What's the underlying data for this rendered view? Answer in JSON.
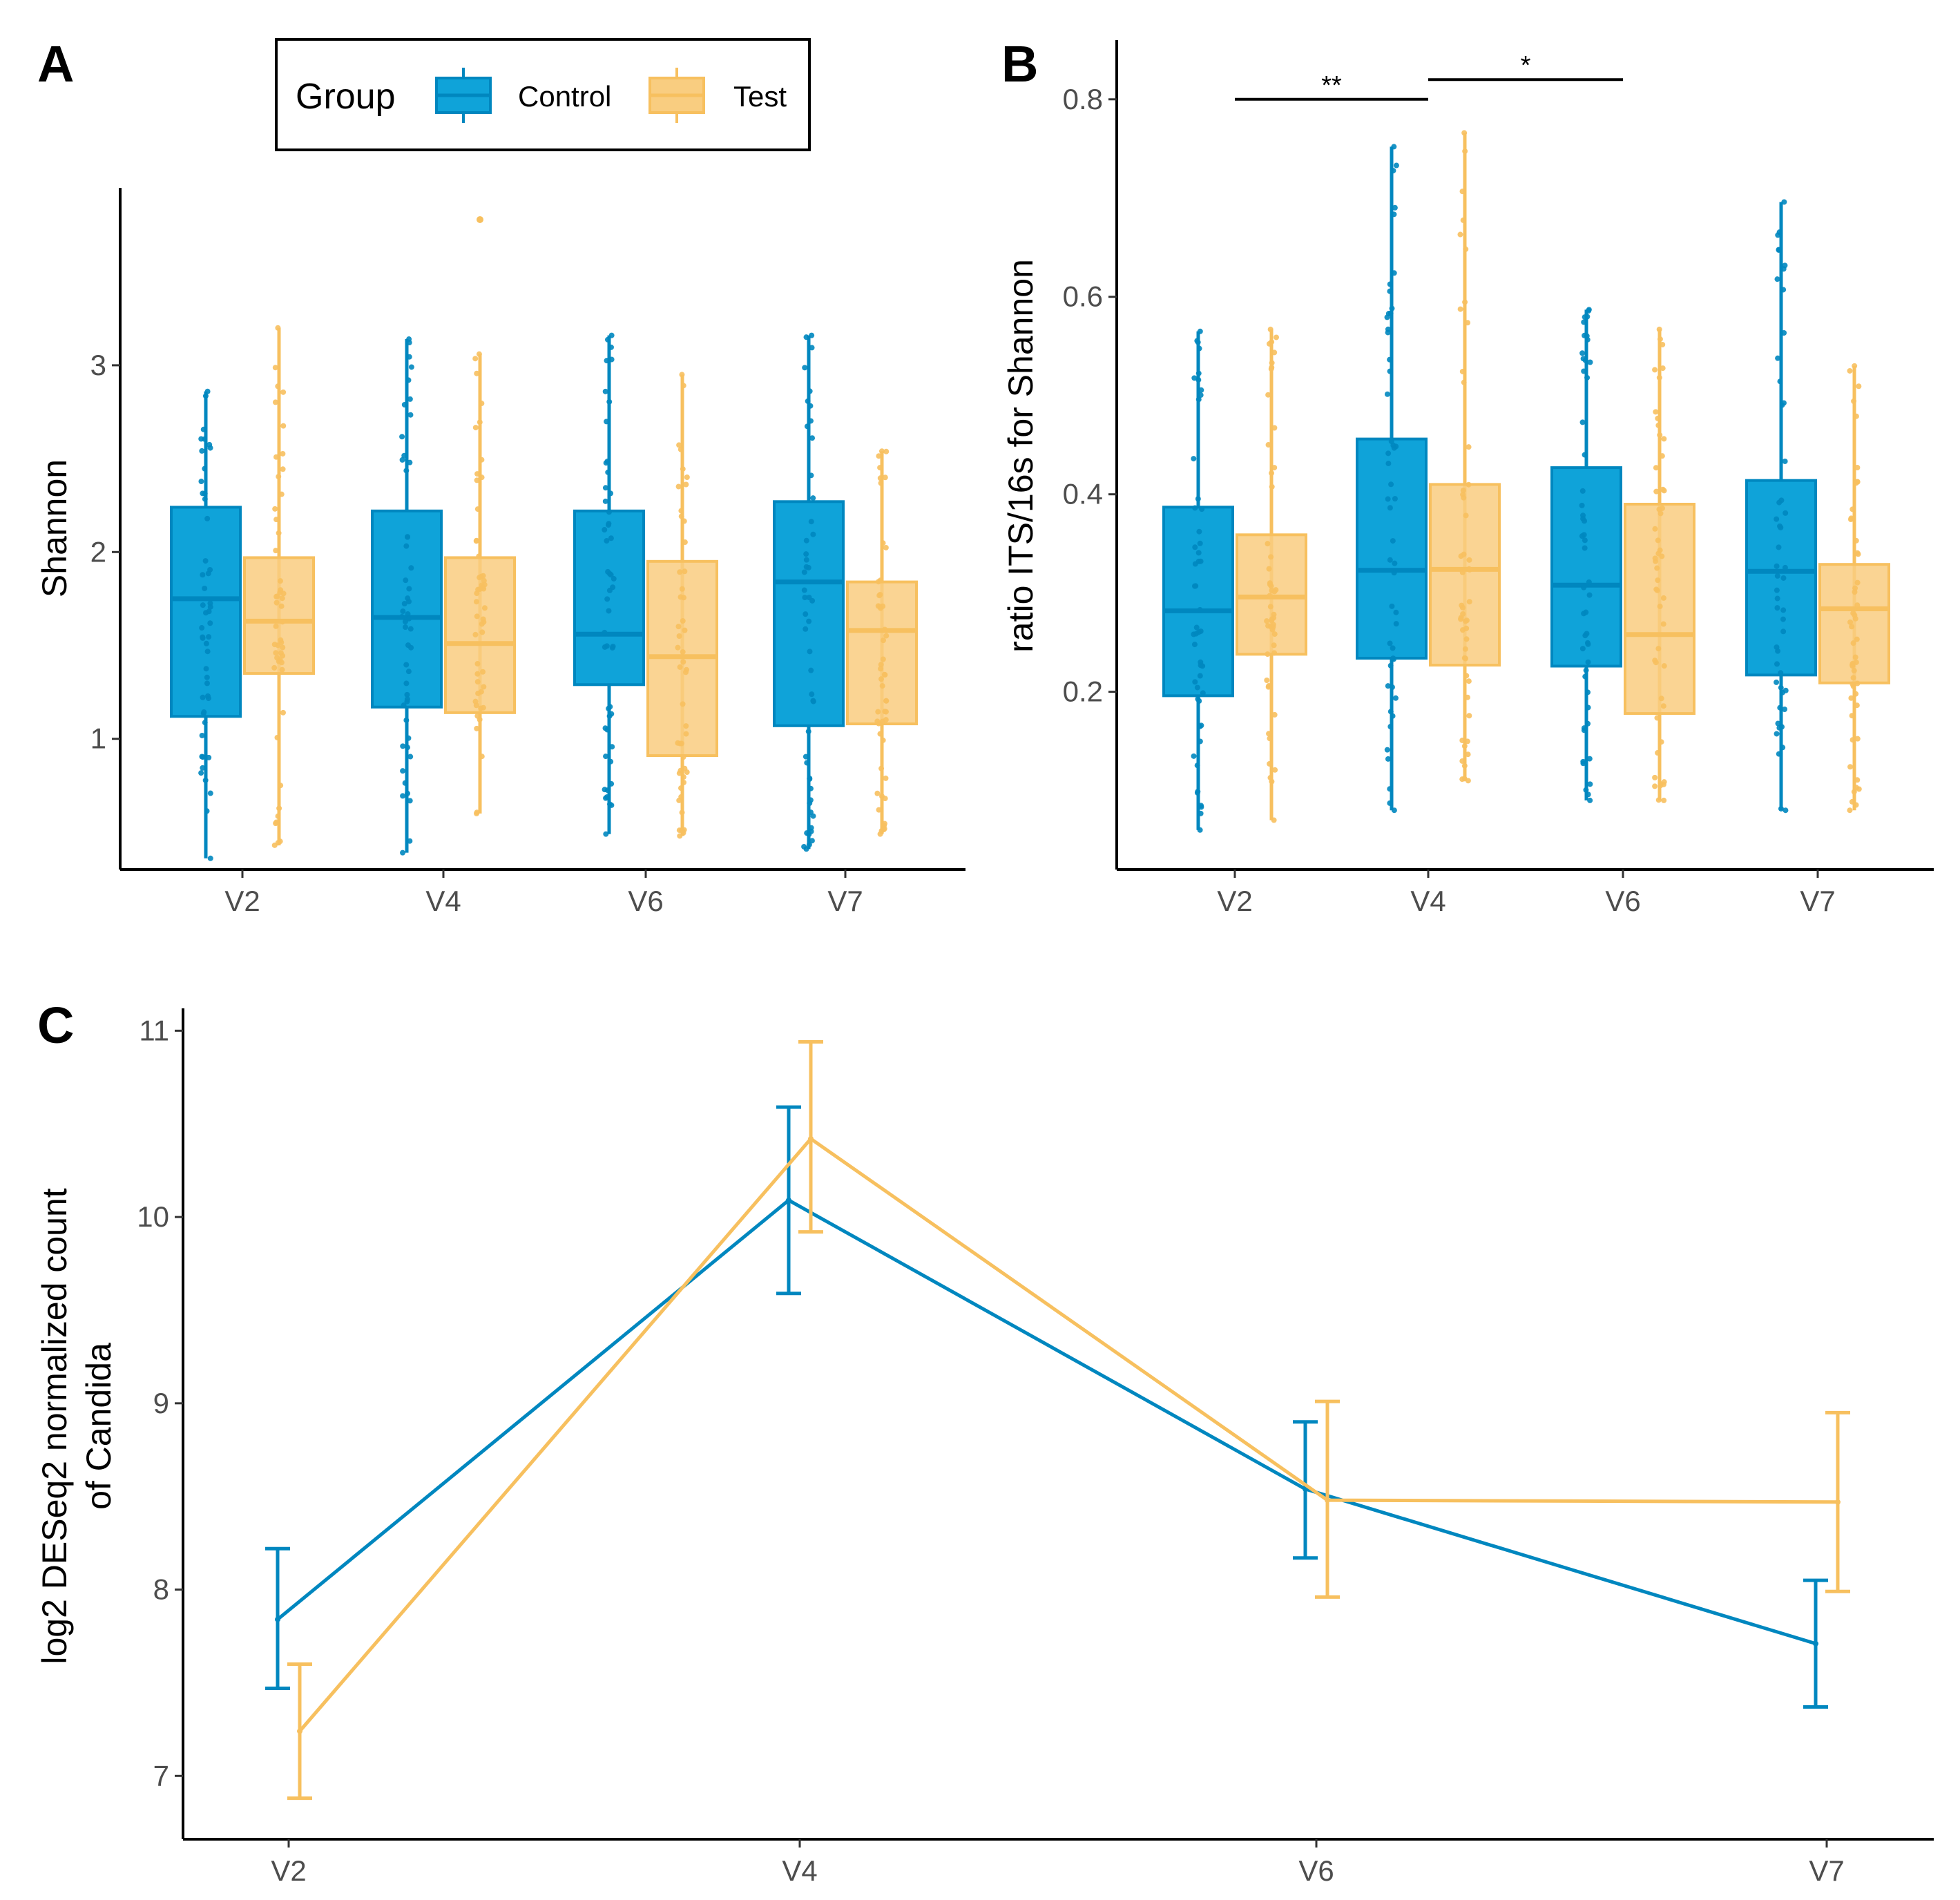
{
  "colors": {
    "control": "#0087bf",
    "control_fill": "#0fa3d9",
    "test": "#f7c05f",
    "test_fill": "#f9cd80"
  },
  "legend": {
    "title": "Group",
    "entries": [
      {
        "label": "Control",
        "color": "#0087bf"
      },
      {
        "label": "Test",
        "color": "#f7c05f"
      }
    ]
  },
  "chart_data": [
    {
      "panel": "A",
      "type": "box",
      "title": "",
      "xlabel": "",
      "ylabel": "Shannon",
      "categories": [
        "V2",
        "V4",
        "V6",
        "V7"
      ],
      "ylim": [
        0.3,
        3.95
      ],
      "yticks": [
        1,
        2,
        3
      ],
      "ytick_labels": [
        "1",
        "2",
        "3"
      ],
      "series": [
        {
          "name": "Control",
          "boxes": [
            {
              "category": "V2",
              "min": 0.36,
              "q1": 1.12,
              "median": 1.75,
              "q3": 2.24,
              "max": 2.86
            },
            {
              "category": "V4",
              "min": 0.39,
              "q1": 1.17,
              "median": 1.65,
              "q3": 2.22,
              "max": 3.14
            },
            {
              "category": "V6",
              "min": 0.49,
              "q1": 1.29,
              "median": 1.56,
              "q3": 2.22,
              "max": 3.16
            },
            {
              "category": "V7",
              "min": 0.41,
              "q1": 1.07,
              "median": 1.84,
              "q3": 2.27,
              "max": 3.16
            }
          ]
        },
        {
          "name": "Test",
          "boxes": [
            {
              "category": "V2",
              "min": 0.43,
              "q1": 1.35,
              "median": 1.63,
              "q3": 1.97,
              "max": 3.2
            },
            {
              "category": "V4",
              "min": 0.6,
              "q1": 1.14,
              "median": 1.51,
              "q3": 1.97,
              "max": 3.06,
              "outliers": [
                3.78
              ]
            },
            {
              "category": "V6",
              "min": 0.48,
              "q1": 0.91,
              "median": 1.44,
              "q3": 1.95,
              "max": 2.95
            },
            {
              "category": "V7",
              "min": 0.49,
              "q1": 1.08,
              "median": 1.58,
              "q3": 1.84,
              "max": 2.54
            }
          ]
        }
      ]
    },
    {
      "panel": "B",
      "type": "box",
      "title": "",
      "xlabel": "",
      "ylabel": "ratio ITS/16s for Shannon",
      "categories": [
        "V2",
        "V4",
        "V6",
        "V7"
      ],
      "ylim": [
        0.02,
        0.86
      ],
      "yticks": [
        0.2,
        0.4,
        0.6,
        0.8
      ],
      "ytick_labels": [
        "0.2",
        "0.4",
        "0.6",
        "0.8"
      ],
      "series": [
        {
          "name": "Control",
          "boxes": [
            {
              "category": "V2",
              "min": 0.06,
              "q1": 0.196,
              "median": 0.282,
              "q3": 0.387,
              "max": 0.565
            },
            {
              "category": "V4",
              "min": 0.08,
              "q1": 0.234,
              "median": 0.323,
              "q3": 0.456,
              "max": 0.752
            },
            {
              "category": "V6",
              "min": 0.09,
              "q1": 0.226,
              "median": 0.308,
              "q3": 0.427,
              "max": 0.587
            },
            {
              "category": "V7",
              "min": 0.08,
              "q1": 0.217,
              "median": 0.322,
              "q3": 0.414,
              "max": 0.696
            }
          ]
        },
        {
          "name": "Test",
          "boxes": [
            {
              "category": "V2",
              "min": 0.07,
              "q1": 0.238,
              "median": 0.296,
              "q3": 0.359,
              "max": 0.567
            },
            {
              "category": "V4",
              "min": 0.11,
              "q1": 0.227,
              "median": 0.324,
              "q3": 0.41,
              "max": 0.766
            },
            {
              "category": "V6",
              "min": 0.09,
              "q1": 0.178,
              "median": 0.258,
              "q3": 0.39,
              "max": 0.567
            },
            {
              "category": "V7",
              "min": 0.08,
              "q1": 0.209,
              "median": 0.284,
              "q3": 0.329,
              "max": 0.53
            }
          ]
        }
      ],
      "significance": [
        {
          "from": "V2",
          "to": "V4",
          "label": "**",
          "y": 0.8
        },
        {
          "from": "V4",
          "to": "V6",
          "label": "*",
          "y": 0.82
        }
      ]
    },
    {
      "panel": "C",
      "type": "line",
      "title": "",
      "xlabel": "",
      "ylabel_lines": [
        "log2 DESeq2 normalized count",
        "of Candida"
      ],
      "categories": [
        "V2",
        "V4",
        "V6",
        "V7"
      ],
      "ylim": [
        6.66,
        11.12
      ],
      "yticks": [
        7,
        8,
        9,
        10,
        11
      ],
      "ytick_labels": [
        "7",
        "8",
        "9",
        "10",
        "11"
      ],
      "series": [
        {
          "name": "Control",
          "values": [
            7.84,
            10.09,
            8.54,
            7.71
          ],
          "lower": [
            7.47,
            9.59,
            8.17,
            7.37
          ],
          "upper": [
            8.22,
            10.59,
            8.9,
            8.05
          ]
        },
        {
          "name": "Test",
          "values": [
            7.24,
            10.42,
            8.48,
            8.47
          ],
          "lower": [
            6.88,
            9.92,
            7.96,
            7.99
          ],
          "upper": [
            7.6,
            10.94,
            9.01,
            8.95
          ]
        }
      ]
    }
  ]
}
